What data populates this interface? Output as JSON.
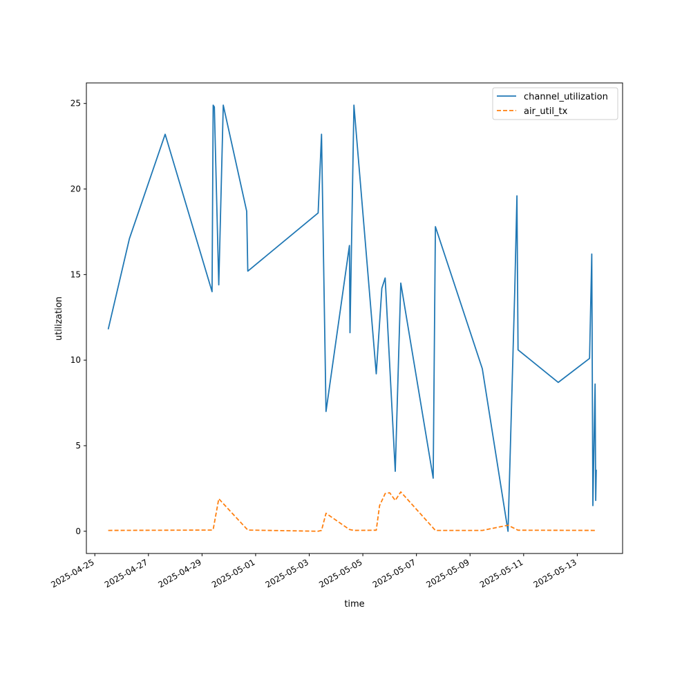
{
  "chart_data": {
    "type": "line",
    "xlabel": "time",
    "ylabel": "utilization",
    "x_type": "date",
    "xlim": [
      "2025-04-24T16:26:00",
      "2025-05-14T16:36:00"
    ],
    "ylim": [
      -1.3,
      26.2
    ],
    "xticks": [
      "2025-04-25",
      "2025-04-27",
      "2025-04-29",
      "2025-05-01",
      "2025-05-03",
      "2025-05-05",
      "2025-05-07",
      "2025-05-09",
      "2025-05-11",
      "2025-05-13"
    ],
    "yticks": [
      0,
      5,
      10,
      15,
      20,
      25
    ],
    "grid": false,
    "legend_position": "top-right",
    "series": [
      {
        "name": "channel_utilization",
        "color": "#1f77b4",
        "linestyle": "solid",
        "points": [
          [
            "2025-04-25T12:00",
            11.8
          ],
          [
            "2025-04-26T07:00",
            17.1
          ],
          [
            "2025-04-27T15:00",
            23.2
          ],
          [
            "2025-04-29T09:00",
            14.0
          ],
          [
            "2025-04-29T10:00",
            24.9
          ],
          [
            "2025-04-29T11:00",
            24.8
          ],
          [
            "2025-04-29T15:00",
            14.4
          ],
          [
            "2025-04-29T19:00",
            24.9
          ],
          [
            "2025-04-30T16:00",
            18.7
          ],
          [
            "2025-04-30T17:00",
            15.2
          ],
          [
            "2025-05-03T08:00",
            18.6
          ],
          [
            "2025-05-03T11:00",
            23.2
          ],
          [
            "2025-05-03T15:00",
            7.0
          ],
          [
            "2025-05-04T12:00",
            16.7
          ],
          [
            "2025-05-04T12:30",
            11.6
          ],
          [
            "2025-05-04T16:00",
            24.9
          ],
          [
            "2025-05-05T12:00",
            9.2
          ],
          [
            "2025-05-05T17:00",
            14.2
          ],
          [
            "2025-05-05T20:00",
            14.8
          ],
          [
            "2025-05-06T05:00",
            3.5
          ],
          [
            "2025-05-06T10:00",
            14.5
          ],
          [
            "2025-05-07T15:00",
            3.1
          ],
          [
            "2025-05-07T17:00",
            17.8
          ],
          [
            "2025-05-09T11:00",
            9.5
          ],
          [
            "2025-05-10T10:00",
            0.0
          ],
          [
            "2025-05-10T16:00",
            14.0
          ],
          [
            "2025-05-10T18:00",
            19.6
          ],
          [
            "2025-05-10T19:00",
            10.6
          ],
          [
            "2025-05-12T07:00",
            8.7
          ],
          [
            "2025-05-13T11:00",
            10.1
          ],
          [
            "2025-05-13T13:00",
            16.2
          ],
          [
            "2025-05-13T14:00",
            1.5
          ],
          [
            "2025-05-13T16:00",
            8.6
          ],
          [
            "2025-05-13T16:30",
            1.8
          ],
          [
            "2025-05-13T17:00",
            3.6
          ]
        ]
      },
      {
        "name": "air_util_tx",
        "color": "#ff7f0e",
        "linestyle": "dashed",
        "points": [
          [
            "2025-04-25T12:00",
            0.05
          ],
          [
            "2025-04-29T09:00",
            0.07
          ],
          [
            "2025-04-29T10:00",
            0.1
          ],
          [
            "2025-04-29T15:00",
            1.9
          ],
          [
            "2025-04-30T17:00",
            0.07
          ],
          [
            "2025-05-03T08:00",
            0.0
          ],
          [
            "2025-05-03T11:00",
            0.05
          ],
          [
            "2025-05-03T15:00",
            1.05
          ],
          [
            "2025-05-04T12:00",
            0.1
          ],
          [
            "2025-05-04T16:00",
            0.05
          ],
          [
            "2025-05-05T12:00",
            0.06
          ],
          [
            "2025-05-05T15:00",
            1.5
          ],
          [
            "2025-05-05T20:00",
            2.2
          ],
          [
            "2025-05-06T00:00",
            2.25
          ],
          [
            "2025-05-06T05:00",
            1.8
          ],
          [
            "2025-05-06T10:00",
            2.3
          ],
          [
            "2025-05-07T17:00",
            0.05
          ],
          [
            "2025-05-09T11:00",
            0.05
          ],
          [
            "2025-05-10T10:00",
            0.35
          ],
          [
            "2025-05-10T19:00",
            0.06
          ],
          [
            "2025-05-13T17:00",
            0.05
          ]
        ]
      }
    ]
  }
}
